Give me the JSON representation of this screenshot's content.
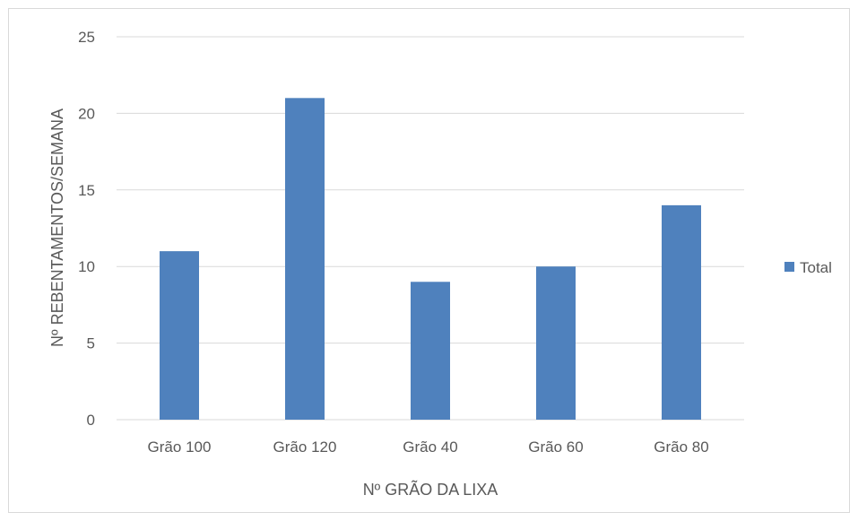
{
  "chart_data": {
    "type": "bar",
    "title": "",
    "xlabel": "Nº GRÃO DA LIXA",
    "ylabel": "Nº REBENTAMENTOS/SEMANA",
    "categories": [
      "Grão 100",
      "Grão 120",
      "Grão 40",
      "Grão 60",
      "Grão 80"
    ],
    "series": [
      {
        "name": "Total",
        "values": [
          11,
          21,
          9,
          10,
          14
        ],
        "color": "#4f81bd"
      }
    ],
    "ylim": [
      0,
      25
    ],
    "yticks": [
      0,
      5,
      10,
      15,
      20,
      25
    ],
    "grid": true,
    "legend_position": "right",
    "gridline_color": "#d9d9d9",
    "text_color": "#595959"
  }
}
